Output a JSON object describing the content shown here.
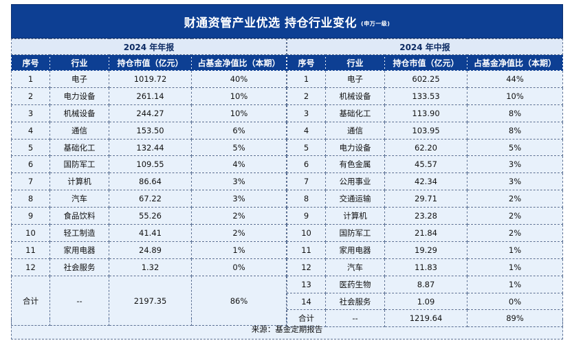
{
  "banner": {
    "title": "财通资管产业优选 持仓行业变化",
    "subtitle": "(申万一级)"
  },
  "columns": [
    "序号",
    "行业",
    "持仓市值（亿元）",
    "占基金净值比（本期）"
  ],
  "left": {
    "period": "2024 年年报",
    "rows": [
      [
        "1",
        "电子",
        "1019.72",
        "40%"
      ],
      [
        "2",
        "电力设备",
        "261.14",
        "10%"
      ],
      [
        "3",
        "机械设备",
        "244.27",
        "10%"
      ],
      [
        "4",
        "通信",
        "153.50",
        "6%"
      ],
      [
        "5",
        "基础化工",
        "132.44",
        "5%"
      ],
      [
        "6",
        "国防军工",
        "109.55",
        "4%"
      ],
      [
        "7",
        "计算机",
        "86.64",
        "3%"
      ],
      [
        "8",
        "汽车",
        "67.22",
        "3%"
      ],
      [
        "9",
        "食品饮料",
        "55.26",
        "2%"
      ],
      [
        "10",
        "轻工制造",
        "41.41",
        "2%"
      ],
      [
        "11",
        "家用电器",
        "24.89",
        "1%"
      ],
      [
        "12",
        "社会服务",
        "1.32",
        "0%"
      ]
    ],
    "total": [
      "合计",
      "--",
      "2197.35",
      "86%"
    ]
  },
  "right": {
    "period": "2024 年中报",
    "rows": [
      [
        "1",
        "电子",
        "602.25",
        "44%"
      ],
      [
        "2",
        "机械设备",
        "133.53",
        "10%"
      ],
      [
        "3",
        "基础化工",
        "113.90",
        "8%"
      ],
      [
        "4",
        "通信",
        "103.95",
        "8%"
      ],
      [
        "5",
        "电力设备",
        "62.20",
        "5%"
      ],
      [
        "6",
        "有色金属",
        "45.57",
        "3%"
      ],
      [
        "7",
        "公用事业",
        "42.34",
        "3%"
      ],
      [
        "8",
        "交通运输",
        "29.71",
        "2%"
      ],
      [
        "9",
        "计算机",
        "23.28",
        "2%"
      ],
      [
        "10",
        "国防军工",
        "21.84",
        "2%"
      ],
      [
        "11",
        "家用电器",
        "19.29",
        "1%"
      ],
      [
        "12",
        "汽车",
        "11.83",
        "1%"
      ],
      [
        "13",
        "医药生物",
        "8.87",
        "1%"
      ],
      [
        "14",
        "社会服务",
        "1.09",
        "0%"
      ]
    ],
    "total": [
      "合计",
      "--",
      "1219.64",
      "89%"
    ]
  },
  "footer": "来源：基金定期报告"
}
